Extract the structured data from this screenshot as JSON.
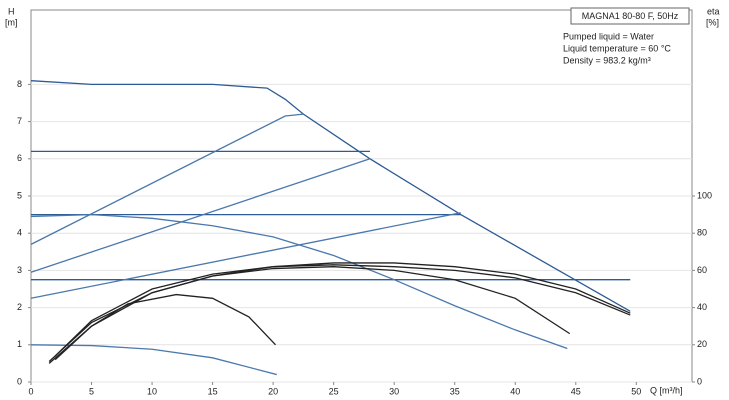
{
  "chart_data": {
    "type": "line",
    "title": "MAGNA1 80-80 F, 50Hz",
    "info": [
      "Pumped liquid = Water",
      "Liquid temperature = 60 °C",
      "Density = 983.2 kg/m³"
    ],
    "y_label": "H",
    "y_unit": "[m]",
    "y2_label": "eta",
    "y2_unit": "[%]",
    "x_label": "Q [m³/h]",
    "xlim": [
      0,
      54.6
    ],
    "xticks": [
      0,
      5,
      10,
      15,
      20,
      25,
      30,
      35,
      40,
      45,
      50
    ],
    "ylim": [
      0,
      10
    ],
    "yticks": [
      0,
      1,
      2,
      3,
      4,
      5,
      6,
      7,
      8
    ],
    "y2lim": [
      0,
      200
    ],
    "y2ticks": [
      0,
      20,
      40,
      60,
      80,
      100
    ],
    "grid": true,
    "series": [
      {
        "color": "#2d5b96",
        "x": [
          0,
          5,
          10,
          15,
          19.5,
          21,
          22.5,
          28,
          35.5,
          49.5
        ],
        "values": [
          8.1,
          8.0,
          8.0,
          8.0,
          7.9,
          7.6,
          7.2,
          6.0,
          4.5,
          1.9
        ]
      },
      {
        "color": "#2d5b96",
        "x": [
          0,
          28
        ],
        "values": [
          6.2,
          6.2
        ]
      },
      {
        "color": "#2d5b96",
        "x": [
          0,
          35.5
        ],
        "values": [
          4.5,
          4.5
        ]
      },
      {
        "color": "#2d5b96",
        "x": [
          0,
          49.5
        ],
        "values": [
          2.75,
          2.75
        ]
      },
      {
        "color": "#4a78ad",
        "x": [
          0,
          21,
          22.5
        ],
        "values": [
          3.7,
          7.15,
          7.2
        ]
      },
      {
        "color": "#4a78ad",
        "x": [
          0,
          28
        ],
        "values": [
          2.95,
          6.0
        ]
      },
      {
        "color": "#4a78ad",
        "x": [
          0,
          35.5
        ],
        "values": [
          2.25,
          4.55
        ]
      },
      {
        "color": "#4a78ad",
        "x": [
          0,
          5,
          10,
          15,
          20,
          25,
          30,
          35,
          40,
          44.3
        ],
        "values": [
          4.45,
          4.5,
          4.4,
          4.2,
          3.9,
          3.4,
          2.75,
          2.05,
          1.4,
          0.9
        ]
      },
      {
        "color": "#4a78ad",
        "x": [
          0,
          5,
          10,
          15,
          20.3
        ],
        "values": [
          1.0,
          0.98,
          0.88,
          0.65,
          0.2
        ]
      },
      {
        "color": "#222222",
        "axis": "y2",
        "x": [
          1.5,
          5,
          10,
          15,
          20,
          25,
          30,
          35,
          40,
          45,
          49.5
        ],
        "values": [
          10,
          30,
          48,
          57,
          62,
          64,
          64,
          62,
          58,
          50,
          37
        ]
      },
      {
        "color": "#222222",
        "axis": "y2",
        "x": [
          2,
          5,
          10,
          15,
          20,
          25,
          30,
          35,
          40,
          45,
          49.5
        ],
        "values": [
          14,
          33,
          50,
          58,
          62,
          63,
          62,
          60,
          56,
          48,
          36
        ]
      },
      {
        "color": "#222222",
        "axis": "y2",
        "x": [
          1.5,
          5,
          10,
          15,
          20,
          25,
          30,
          35,
          40,
          44.5
        ],
        "values": [
          11,
          32,
          48,
          57,
          61,
          62,
          60,
          55,
          45,
          26
        ]
      },
      {
        "color": "#222222",
        "axis": "y2",
        "x": [
          2,
          5,
          8,
          12,
          15,
          18,
          20.2
        ],
        "values": [
          12,
          30,
          42,
          47,
          45,
          35,
          20
        ]
      }
    ]
  }
}
